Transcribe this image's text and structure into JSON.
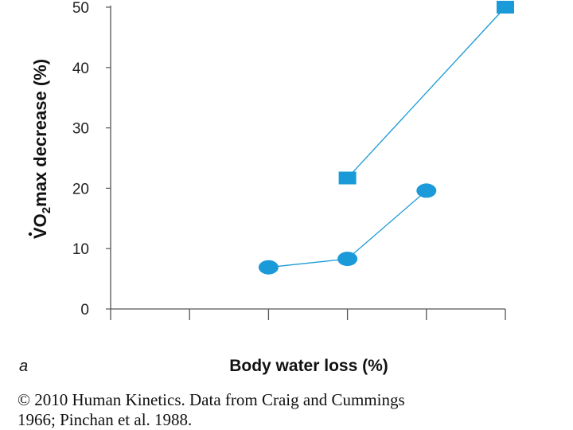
{
  "chart_data": {
    "type": "line",
    "panel_label": "a",
    "xlabel": "Body water loss (%)",
    "ylabel": {
      "prefix": "V",
      "subscript": "2",
      "middle": "O",
      "suffix": "max decrease (%)"
    },
    "ylim": [
      0,
      50
    ],
    "yticks": [
      "0",
      "10",
      "20",
      "30",
      "40",
      "50"
    ],
    "x_ticks": [
      1,
      2,
      3,
      4,
      5
    ],
    "series": [
      {
        "marker": "circle",
        "color": "#1a9ad8",
        "x": [
          2,
          3,
          4
        ],
        "values": [
          6.9,
          8.3,
          19.6
        ]
      },
      {
        "marker": "square",
        "color": "#1a9ad8",
        "x": [
          3,
          5
        ],
        "values": [
          21.7,
          50.0
        ]
      }
    ]
  },
  "credit": {
    "line1": "© 2010 Human Kinetics. Data from Craig and Cummings",
    "line2": "1966; Pinchan et al. 1988."
  }
}
